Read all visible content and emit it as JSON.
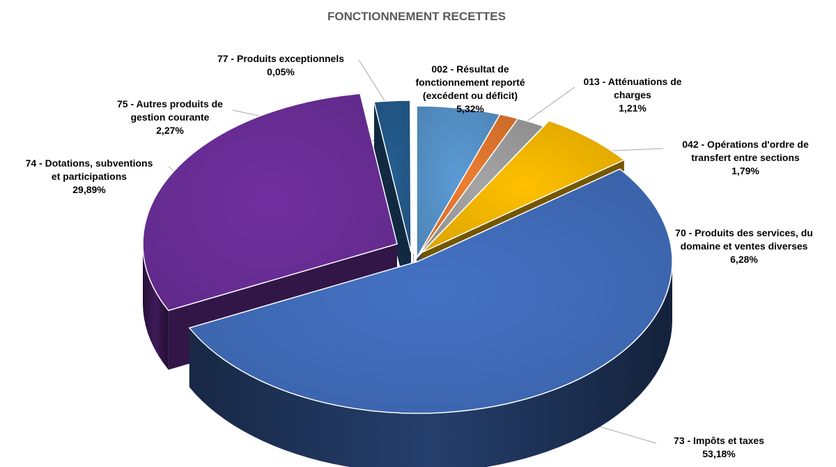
{
  "chart_data": {
    "type": "pie",
    "title": "FONCTIONNEMENT RECETTES",
    "slices": [
      {
        "name": "002 - Résultat de fonctionnement reporté (excédent ou déficit)",
        "label_lines": [
          "002 - Résultat de",
          "fonctionnement reporté",
          "(excédent ou déficit)"
        ],
        "value": 5.32,
        "value_label": "5,32%",
        "color": "#5b9bd5"
      },
      {
        "name": "013 - Atténuations de charges",
        "label_lines": [
          "013 - Atténuations de",
          "charges"
        ],
        "value": 1.21,
        "value_label": "1,21%",
        "color": "#ed7d31"
      },
      {
        "name": "042 - Opérations d'ordre de transfert entre sections",
        "label_lines": [
          "042 - Opérations d'ordre de",
          "transfert entre sections"
        ],
        "value": 1.79,
        "value_label": "1,79%",
        "color": "#a5a5a5"
      },
      {
        "name": "70 - Produits des services, du domaine et ventes diverses",
        "label_lines": [
          "70 - Produits des services, du",
          "domaine et ventes diverses"
        ],
        "value": 6.28,
        "value_label": "6,28%",
        "color": "#ffc000"
      },
      {
        "name": "73 - Impôts et taxes",
        "label_lines": [
          "73 - Impôts et taxes"
        ],
        "value": 53.18,
        "value_label": "53,18%",
        "color": "#4472c4"
      },
      {
        "name": "74 - Dotations, subventions et participations",
        "label_lines": [
          "74 - Dotations, subventions",
          "et participations"
        ],
        "value": 29.89,
        "value_label": "29,89%",
        "color": "#7030a0"
      },
      {
        "name": "75 - Autres produits de gestion courante",
        "label_lines": [
          "75 - Autres produits de",
          "gestion courante"
        ],
        "value": 2.27,
        "value_label": "2,27%",
        "color": "#255e91"
      },
      {
        "name": "77 - Produits exceptionnels",
        "label_lines": [
          "77 - Produits exceptionnels"
        ],
        "value": 0.05,
        "value_label": "0,05%",
        "color": "#264478"
      }
    ],
    "start_angle_deg": 0,
    "direction": "clockwise",
    "exploded": true,
    "three_d": true,
    "legend": "none"
  }
}
